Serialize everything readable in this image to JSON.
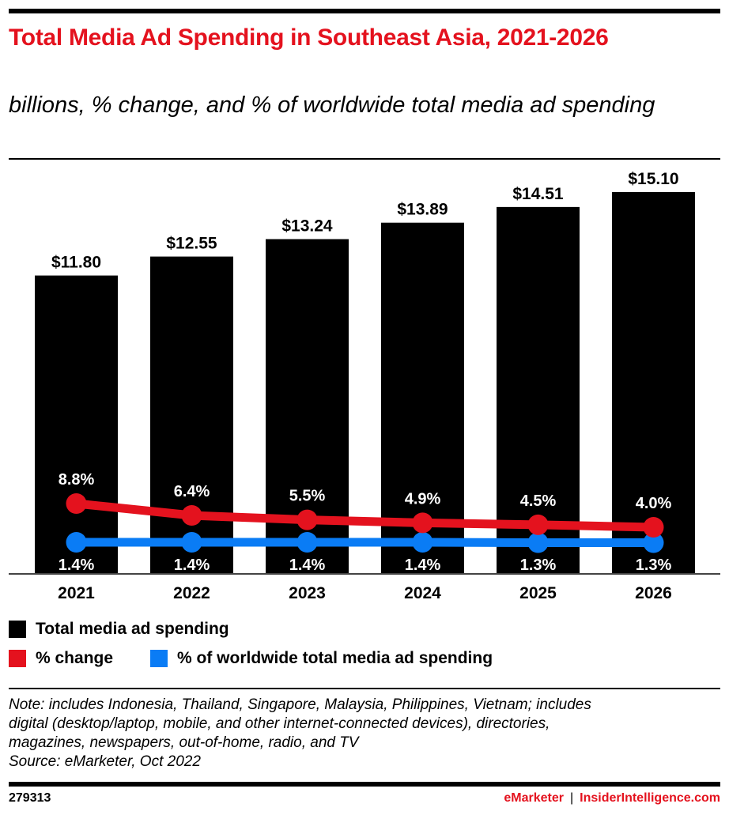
{
  "header": {
    "title": "Total Media Ad Spending in Southeast Asia, 2021-2026",
    "subtitle": "billions, % change, and % of worldwide total media ad spending"
  },
  "colors": {
    "bar": "#000000",
    "change": "#e4121e",
    "share": "#0a7cf5",
    "title": "#e4121e"
  },
  "chart_data": {
    "type": "bar",
    "title": "Total Media Ad Spending in Southeast Asia, 2021-2026",
    "subtitle": "billions, % change, and % of worldwide total media ad spending",
    "categories": [
      "2021",
      "2022",
      "2023",
      "2024",
      "2025",
      "2026"
    ],
    "series": [
      {
        "name": "Total media ad spending",
        "kind": "bar",
        "unit": "billions",
        "values": [
          11.8,
          12.55,
          13.24,
          13.89,
          14.51,
          15.1
        ],
        "labels": [
          "$11.80",
          "$12.55",
          "$13.24",
          "$13.89",
          "$14.51",
          "$15.10"
        ]
      },
      {
        "name": "% change",
        "kind": "line",
        "unit": "%",
        "values": [
          8.8,
          6.4,
          5.5,
          4.9,
          4.5,
          4.0
        ],
        "labels": [
          "8.8%",
          "6.4%",
          "5.5%",
          "4.9%",
          "4.5%",
          "4.0%"
        ]
      },
      {
        "name": "% of worldwide total media ad spending",
        "kind": "line",
        "unit": "%",
        "values": [
          1.4,
          1.4,
          1.4,
          1.4,
          1.3,
          1.3
        ],
        "labels": [
          "1.4%",
          "1.4%",
          "1.4%",
          "1.4%",
          "1.3%",
          "1.3%"
        ]
      }
    ],
    "xlabel": "",
    "ylabel": "",
    "ylim": [
      0,
      15.1
    ],
    "grid": false,
    "legend_position": "bottom-left"
  },
  "legend": [
    {
      "label": "Total media ad spending"
    },
    {
      "label": "% change"
    },
    {
      "label": "% of worldwide total media ad spending"
    }
  ],
  "note": {
    "line1": "Note: includes Indonesia, Thailand, Singapore, Malaysia, Philippines, Vietnam; includes",
    "line2": "digital (desktop/laptop, mobile, and other internet-connected devices), directories,",
    "line3": "magazines, newspapers, out-of-home, radio, and TV",
    "source": "Source: eMarketer, Oct 2022"
  },
  "footer": {
    "id": "279313",
    "brand1": "eMarketer",
    "separator": "|",
    "brand2": "InsiderIntelligence.com"
  }
}
